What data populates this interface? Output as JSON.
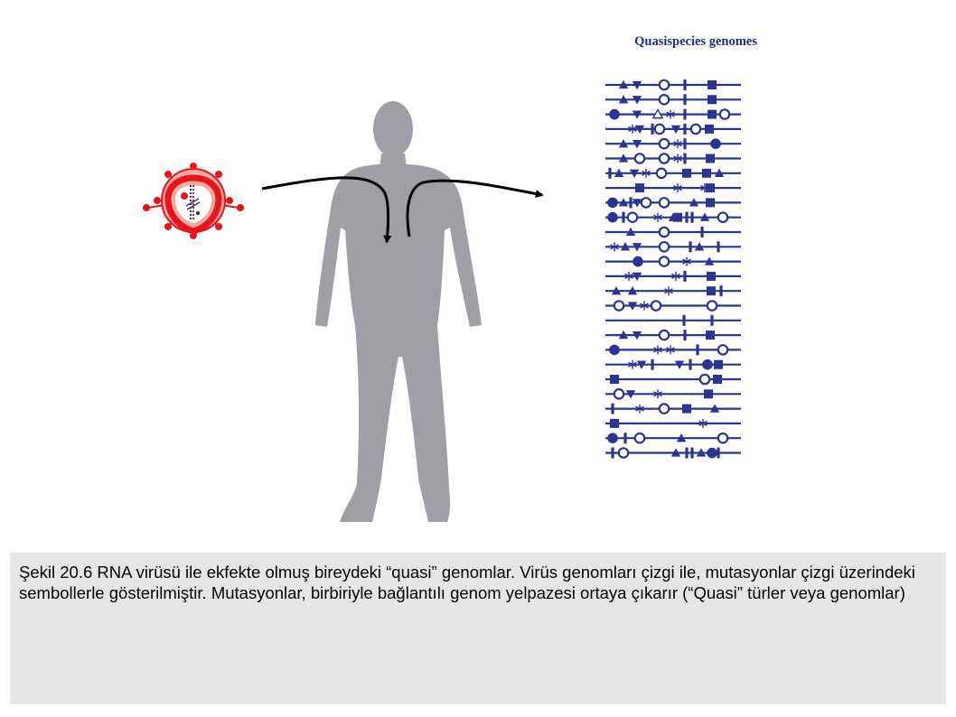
{
  "figure": {
    "genomes_title": "Quasispecies genomes",
    "colors": {
      "genome_ink": "#283593",
      "title_ink": "#1f2a8a",
      "silhouette": "#9ea0a5",
      "virus_red": "#e8141c",
      "virus_inner": "#f3aba1",
      "arrow": "#000000",
      "caption_bg": "#e6e6e6"
    },
    "icons": [
      "virus-particle-icon",
      "human-silhouette-icon",
      "infection-arrow-icon",
      "quasispecies-genome-lines"
    ],
    "genome_count": 27,
    "mutation_symbols": [
      "triangle",
      "inverted-triangle",
      "open-circle",
      "filled-circle",
      "bar",
      "square",
      "star",
      "open-triangle"
    ]
  },
  "caption": {
    "text": "Şekil 20.6 RNA virüsü ile ekfekte olmuş bireydeki “quasi” genomlar. Virüs genomları çizgi ile, mutasyonlar çizgi üzerindeki sembollerle gösterilmiştir. Mutasyonlar, birbiriyle bağlantılı genom yelpazesi ortaya çıkarır (“Quasi” türler veya genomlar)"
  }
}
